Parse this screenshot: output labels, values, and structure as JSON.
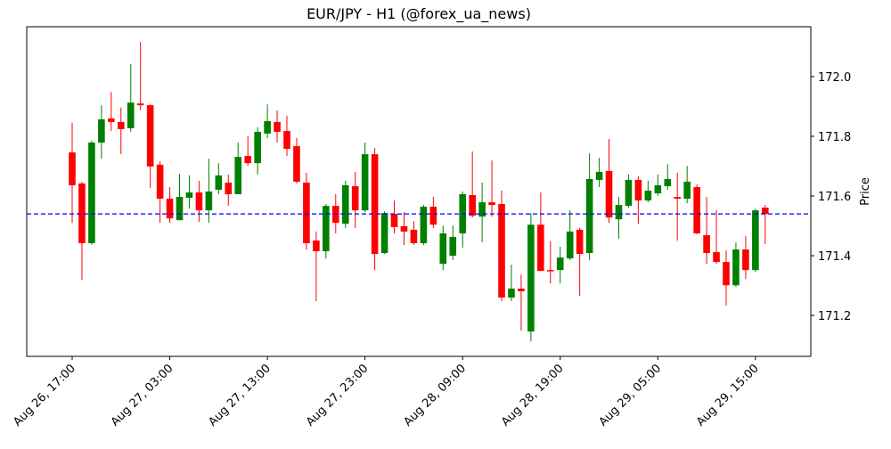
{
  "chart_data": {
    "type": "candlestick",
    "title": "EUR/JPY - H1 (@forex_ua_news)",
    "y_label": "Price",
    "categories": [
      "Aug 26, 17:00",
      null,
      null,
      null,
      null,
      null,
      null,
      null,
      null,
      null,
      "Aug 27, 03:00",
      null,
      null,
      null,
      null,
      null,
      null,
      null,
      null,
      null,
      "Aug 27, 13:00",
      null,
      null,
      null,
      null,
      null,
      null,
      null,
      null,
      null,
      "Aug 27, 23:00",
      null,
      null,
      null,
      null,
      null,
      null,
      null,
      null,
      null,
      "Aug 28, 09:00",
      null,
      null,
      null,
      null,
      null,
      null,
      null,
      null,
      null,
      "Aug 28, 19:00",
      null,
      null,
      null,
      null,
      null,
      null,
      null,
      null,
      null,
      "Aug 29, 05:00",
      null,
      null,
      null,
      null,
      null,
      null,
      null,
      null,
      null,
      "Aug 29, 15:00",
      null
    ],
    "open": [
      171.746,
      171.642,
      171.442,
      171.779,
      171.86,
      171.848,
      171.827,
      171.91,
      171.904,
      171.705,
      171.591,
      171.519,
      171.594,
      171.612,
      171.552,
      171.621,
      171.645,
      171.606,
      171.734,
      171.71,
      171.809,
      171.848,
      171.818,
      171.767,
      171.645,
      171.451,
      171.415,
      171.567,
      171.507,
      171.633,
      171.552,
      171.74,
      171.409,
      171.54,
      171.499,
      171.487,
      171.442,
      171.564,
      171.373,
      171.4,
      171.475,
      171.603,
      171.531,
      171.579,
      171.573,
      171.26,
      171.29,
      171.146,
      171.504,
      171.352,
      171.352,
      171.391,
      171.487,
      171.409,
      171.654,
      171.684,
      171.522,
      171.567,
      171.654,
      171.585,
      171.609,
      171.633,
      171.597,
      171.591,
      171.63,
      171.469,
      171.412,
      171.379,
      171.301,
      171.421,
      171.352,
      171.561
    ],
    "high": [
      171.845,
      171.648,
      171.785,
      171.904,
      171.949,
      171.896,
      172.042,
      172.116,
      171.907,
      171.716,
      171.63,
      171.675,
      171.669,
      171.651,
      171.725,
      171.71,
      171.672,
      171.779,
      171.8,
      171.83,
      171.907,
      171.887,
      171.869,
      171.794,
      171.678,
      171.481,
      171.573,
      171.606,
      171.651,
      171.681,
      171.779,
      171.761,
      171.549,
      171.585,
      171.546,
      171.516,
      171.57,
      171.597,
      171.501,
      171.501,
      171.615,
      171.749,
      171.645,
      171.719,
      171.618,
      171.37,
      171.337,
      171.543,
      171.612,
      171.448,
      171.43,
      171.552,
      171.493,
      171.743,
      171.728,
      171.791,
      171.597,
      171.672,
      171.666,
      171.651,
      171.672,
      171.707,
      171.678,
      171.701,
      171.639,
      171.597,
      171.552,
      171.418,
      171.445,
      171.466,
      171.558,
      171.57
    ],
    "low": [
      171.51,
      171.319,
      171.436,
      171.725,
      171.818,
      171.74,
      171.815,
      171.887,
      171.627,
      171.51,
      171.51,
      171.519,
      171.558,
      171.513,
      171.51,
      171.606,
      171.567,
      171.606,
      171.701,
      171.672,
      171.794,
      171.779,
      171.734,
      171.642,
      171.421,
      171.248,
      171.391,
      171.475,
      171.493,
      171.493,
      171.546,
      171.352,
      171.406,
      171.475,
      171.436,
      171.436,
      171.436,
      171.493,
      171.352,
      171.385,
      171.427,
      171.528,
      171.445,
      171.531,
      171.248,
      171.248,
      171.149,
      171.113,
      171.349,
      171.307,
      171.307,
      171.385,
      171.266,
      171.385,
      171.63,
      171.51,
      171.457,
      171.561,
      171.507,
      171.579,
      171.6,
      171.621,
      171.451,
      171.576,
      171.472,
      171.373,
      171.373,
      171.233,
      171.296,
      171.322,
      171.346,
      171.439
    ],
    "close": [
      171.636,
      171.442,
      171.779,
      171.857,
      171.848,
      171.824,
      171.913,
      171.904,
      171.699,
      171.591,
      171.525,
      171.597,
      171.612,
      171.552,
      171.615,
      171.669,
      171.606,
      171.731,
      171.71,
      171.815,
      171.851,
      171.815,
      171.758,
      171.648,
      171.442,
      171.415,
      171.567,
      171.51,
      171.636,
      171.552,
      171.74,
      171.406,
      171.543,
      171.496,
      171.481,
      171.442,
      171.564,
      171.504,
      171.475,
      171.463,
      171.606,
      171.534,
      171.579,
      171.57,
      171.26,
      171.29,
      171.281,
      171.504,
      171.349,
      171.349,
      171.394,
      171.481,
      171.406,
      171.657,
      171.681,
      171.528,
      171.57,
      171.654,
      171.585,
      171.618,
      171.636,
      171.657,
      171.591,
      171.648,
      171.475,
      171.409,
      171.379,
      171.301,
      171.421,
      171.352,
      171.552,
      171.54
    ],
    "up_color": "green",
    "down_color": "red",
    "hline": {
      "value": 171.54,
      "color": "blue"
    },
    "ylim": [
      171.063,
      172.167
    ],
    "yticks": [
      171.2,
      171.4,
      171.6,
      171.8,
      {
        "value": 172,
        "label": "172.0"
      }
    ]
  }
}
